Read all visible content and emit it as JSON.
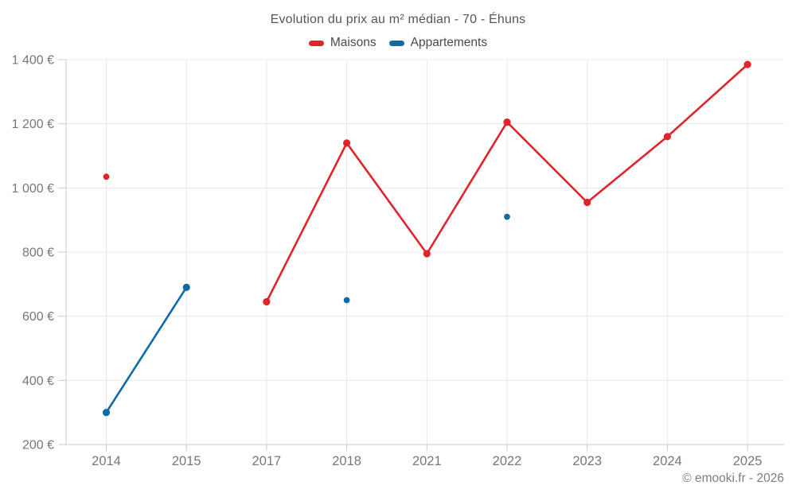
{
  "chart_data": {
    "type": "line",
    "title": "Evolution du prix au m² médian - 70 - Éhuns",
    "categories": [
      "2014",
      "2015",
      "2017",
      "2018",
      "2021",
      "2022",
      "2023",
      "2024",
      "2025"
    ],
    "series": [
      {
        "name": "Maisons",
        "color": "#e0242b",
        "values": [
          1035,
          null,
          645,
          1140,
          795,
          1205,
          955,
          1160,
          1385
        ]
      },
      {
        "name": "Appartements",
        "color": "#0f6ba8",
        "values": [
          300,
          690,
          null,
          650,
          null,
          910,
          null,
          null,
          null
        ]
      }
    ],
    "y_axis": {
      "min": 200,
      "max": 1400,
      "step": 200,
      "unit": "€",
      "tick_labels": [
        "200 €",
        "400 €",
        "600 €",
        "800 €",
        "1 000 €",
        "1 200 €",
        "1 400 €"
      ]
    },
    "grid": true,
    "legend_position": "top"
  },
  "footer": {
    "credit": "© emooki.fr - 2026"
  },
  "colors": {
    "maisons": "#e0242b",
    "appartements": "#0f6ba8",
    "axis_line": "#c9c9c9",
    "grid_line": "#e8e8e8",
    "tick_text": "#77787c",
    "title_text": "#55565a",
    "background": "#ffffff"
  }
}
